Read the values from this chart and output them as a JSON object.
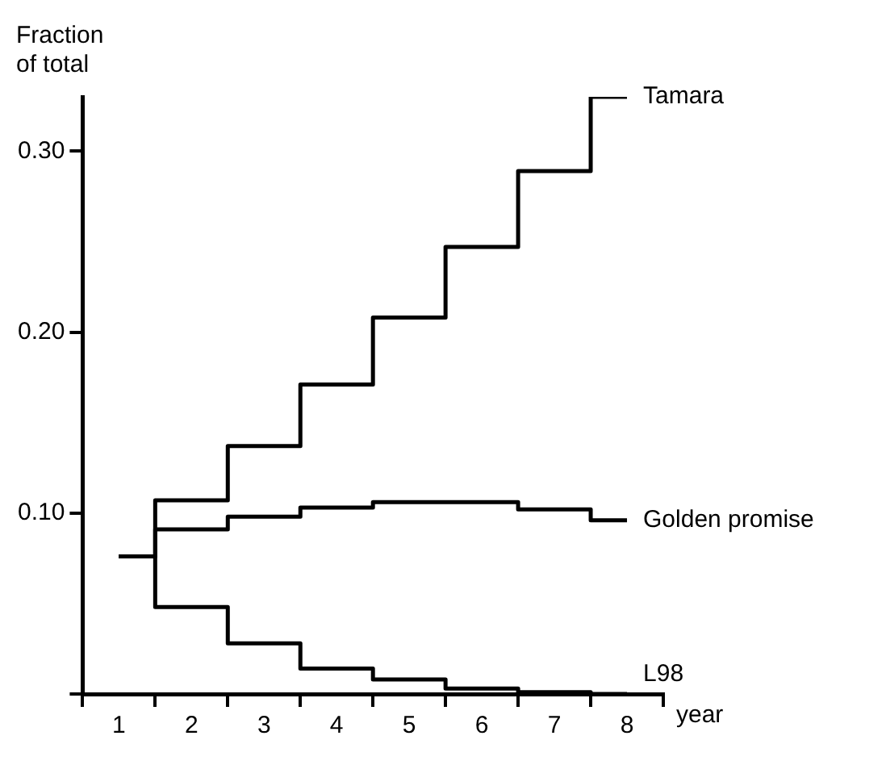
{
  "chart_data": {
    "type": "step",
    "ylabel": "Fraction\nof total",
    "xlabel": "year",
    "categories": [
      "1",
      "2",
      "3",
      "4",
      "5",
      "6",
      "7",
      "8"
    ],
    "series": [
      {
        "name": "Tamara",
        "color": "#000000",
        "values": [
          0.076,
          0.107,
          0.137,
          0.171,
          0.208,
          0.247,
          0.289,
          0.33
        ]
      },
      {
        "name": "Golden promise",
        "color": "#000000",
        "values": [
          0.076,
          0.091,
          0.098,
          0.103,
          0.106,
          0.106,
          0.102,
          0.096
        ]
      },
      {
        "name": "L98",
        "color": "#000000",
        "values": [
          0.076,
          0.048,
          0.028,
          0.014,
          0.008,
          0.003,
          0.001,
          0.0
        ]
      }
    ],
    "ylim": [
      0,
      0.33
    ],
    "yticks": [
      {
        "value": 0,
        "label": null
      },
      {
        "value": 0.1,
        "label": "0.10"
      },
      {
        "value": 0.2,
        "label": "0.20"
      },
      {
        "value": 0.3,
        "label": "0.30"
      }
    ],
    "grid": false
  }
}
